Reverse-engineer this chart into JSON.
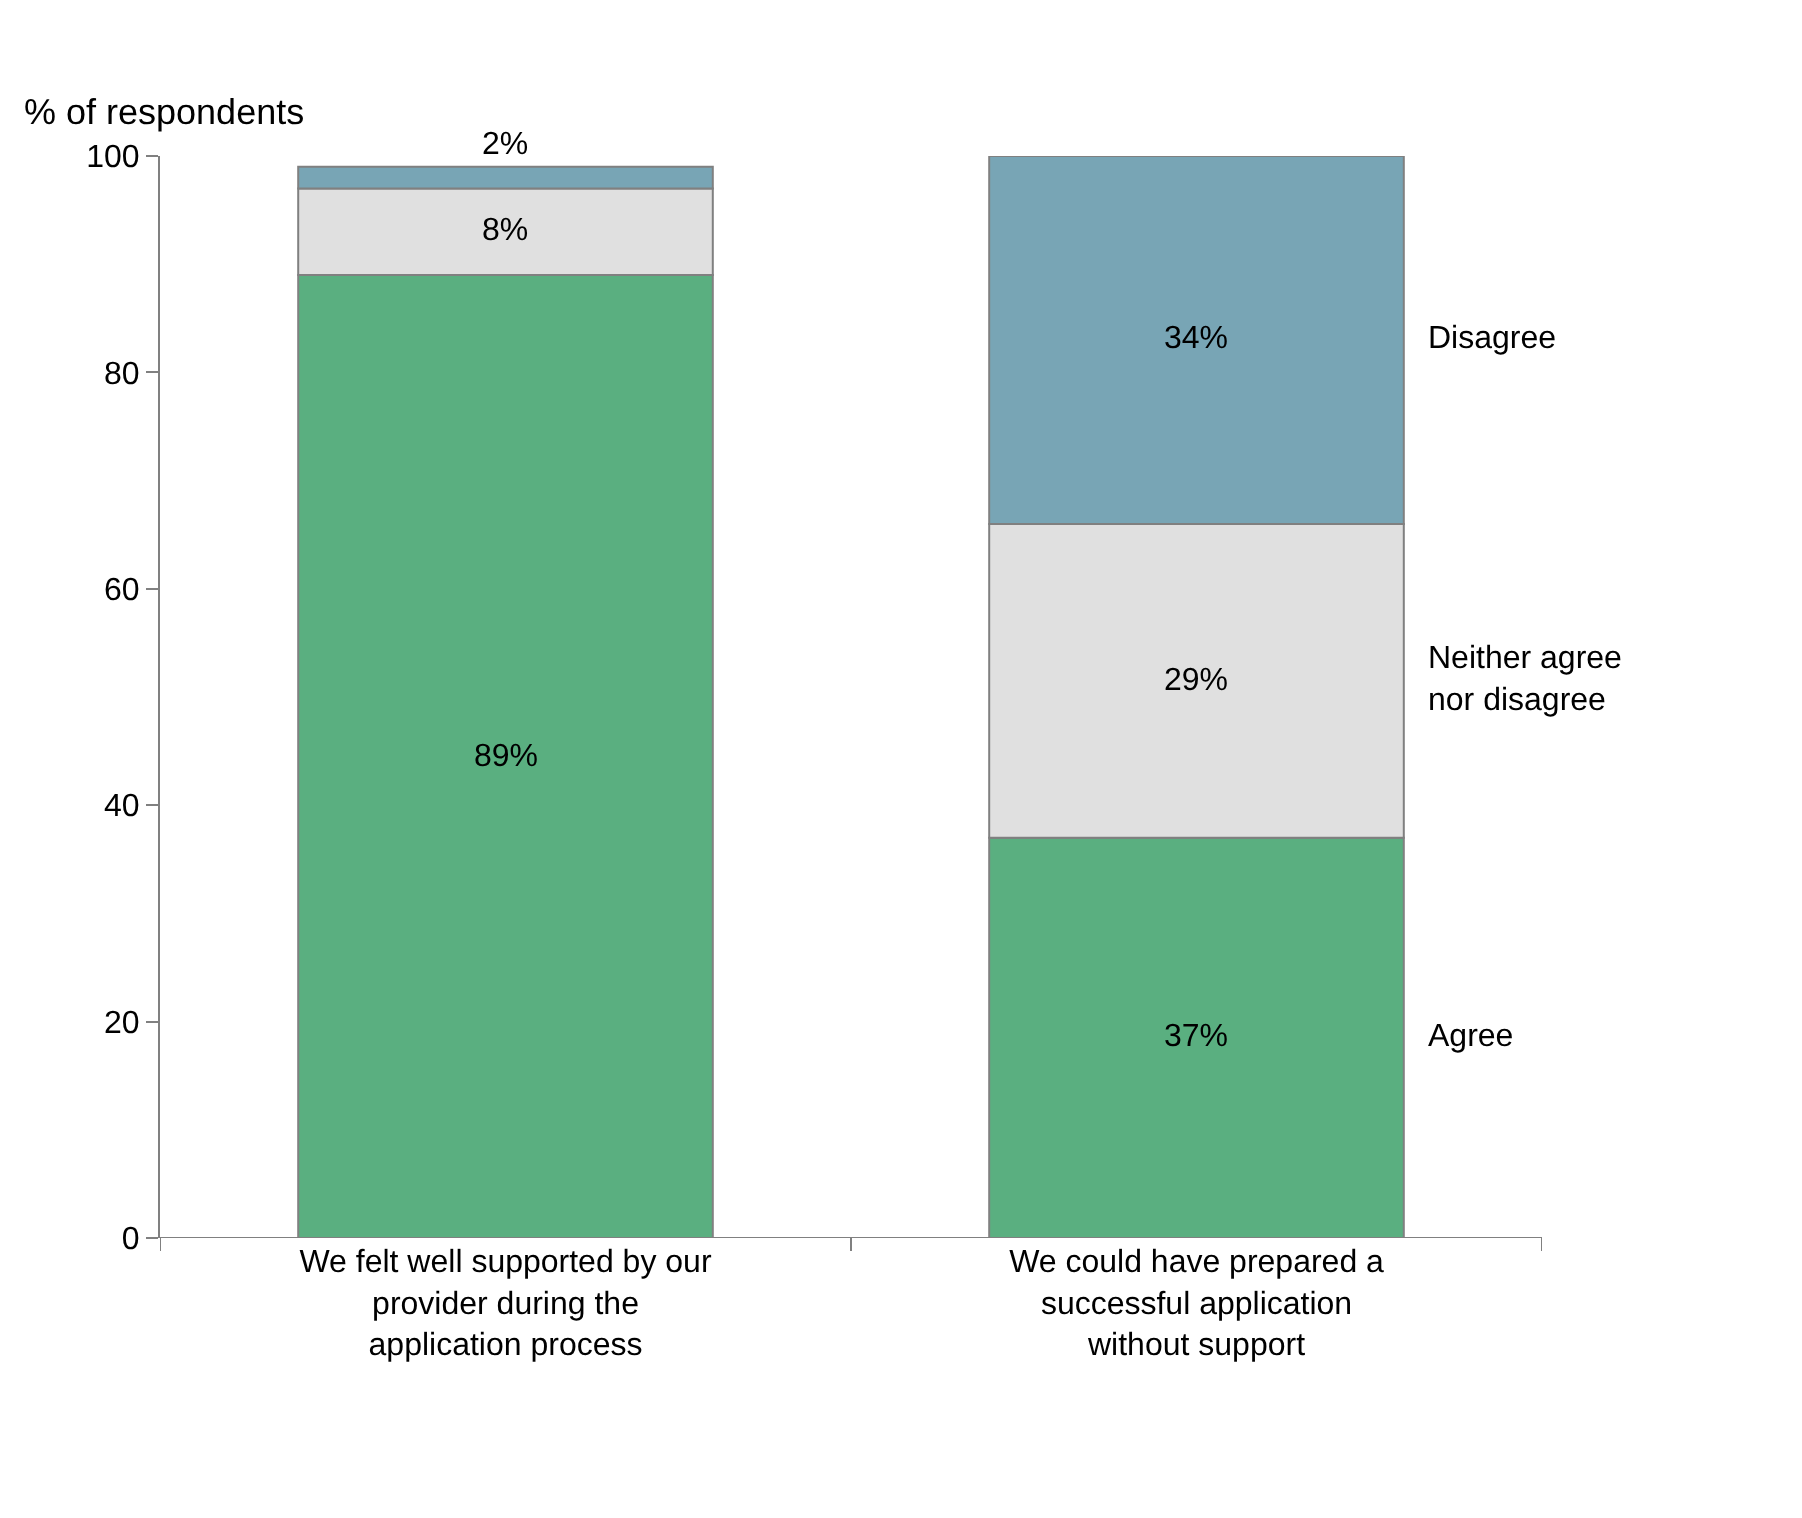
{
  "chart_data": {
    "type": "bar",
    "stacked": true,
    "ylabel": "% of respondents",
    "categories": [
      "We felt well supported by our provider during the application process",
      "We could have prepared a successful application without support"
    ],
    "series": [
      {
        "name": "Agree",
        "color": "#5aaf80",
        "values": [
          89,
          37
        ],
        "value_labels": [
          "89%",
          "37%"
        ]
      },
      {
        "name": "Neither agree nor disagree",
        "color": "#e0e0e0",
        "values": [
          8,
          29
        ],
        "value_labels": [
          "8%",
          "29%"
        ]
      },
      {
        "name": "Disagree",
        "color": "#78a5b5",
        "values": [
          2,
          34
        ],
        "value_labels": [
          "2%",
          "34%"
        ]
      }
    ],
    "ylim": [
      0,
      100
    ],
    "yticks": [
      0,
      20,
      40,
      60,
      80,
      100
    ],
    "legend": false
  }
}
